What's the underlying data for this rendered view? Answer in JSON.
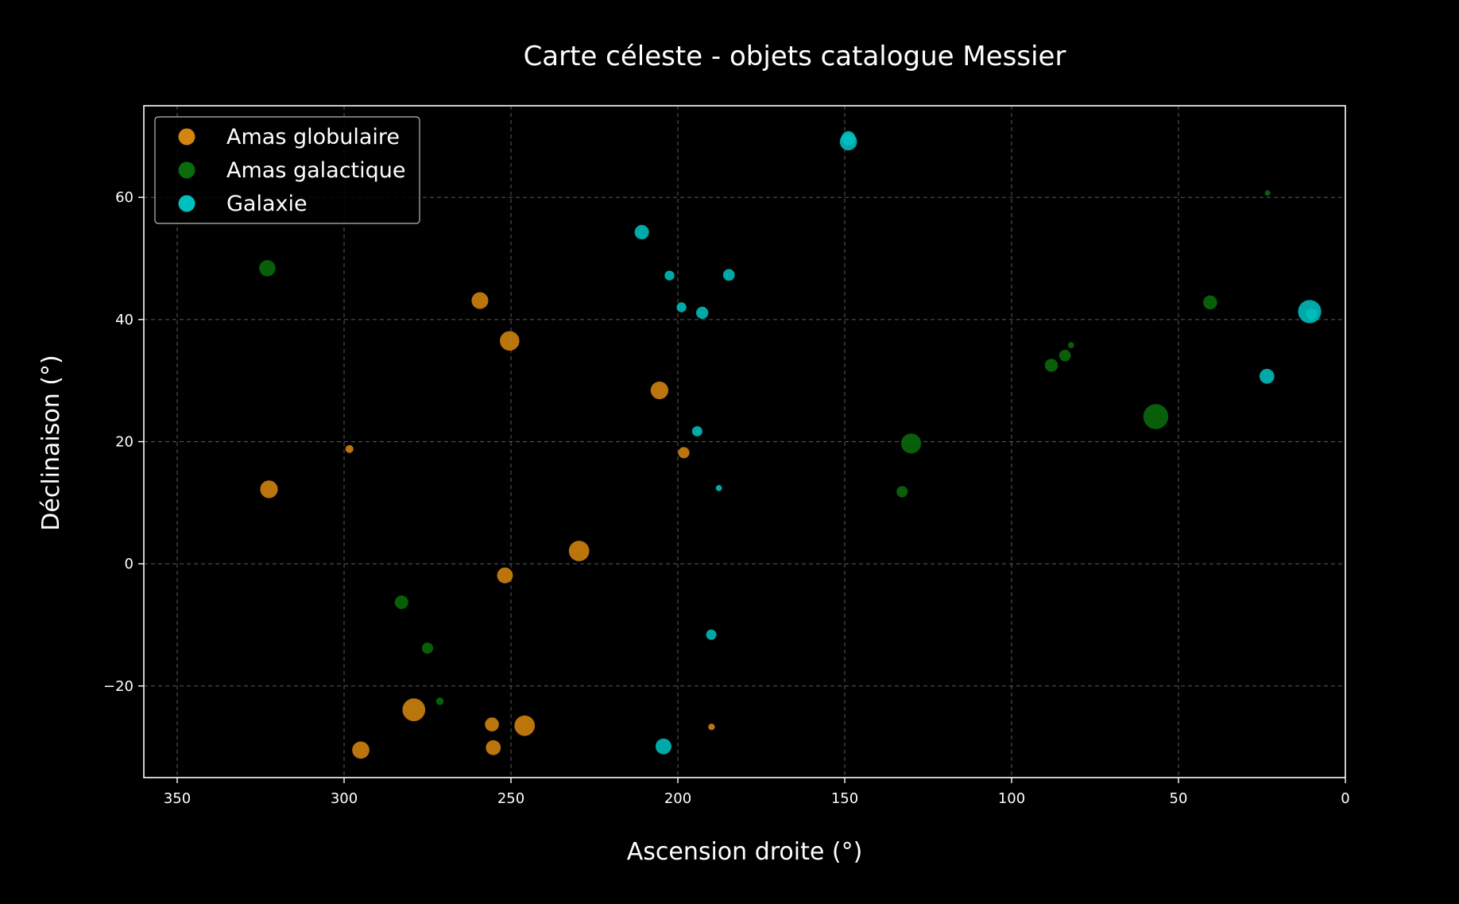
{
  "chart_data": {
    "type": "scatter",
    "title": "Carte céleste - objets catalogue Messier",
    "xlabel": "Ascension droite (°)",
    "ylabel": "Déclinaison (°)",
    "xlim": [
      360,
      0
    ],
    "ylim": [
      -35,
      75
    ],
    "x_ticks": [
      350,
      300,
      250,
      200,
      150,
      100,
      50,
      0
    ],
    "y_ticks": [
      60,
      40,
      20,
      0,
      -20
    ],
    "x_tick_labels": [
      "350",
      "300",
      "250",
      "200",
      "150",
      "100",
      "50",
      "0"
    ],
    "y_tick_labels": [
      "60",
      "40",
      "20",
      "0",
      "−20"
    ],
    "grid": true,
    "legend_position": "top-left",
    "background": "#000000",
    "series": [
      {
        "name": "Amas globulaire",
        "color": "#d4850f",
        "points": [
          {
            "x": 322.5,
            "y": 12.2,
            "mag": 6.2
          },
          {
            "x": 298.4,
            "y": 18.8,
            "mag": 8.3
          },
          {
            "x": 259.3,
            "y": 43.1,
            "mag": 6.4
          },
          {
            "x": 250.4,
            "y": 36.5,
            "mag": 5.8
          },
          {
            "x": 205.5,
            "y": 28.4,
            "mag": 6.2
          },
          {
            "x": 198.2,
            "y": 18.2,
            "mag": 7.6
          },
          {
            "x": 229.6,
            "y": 2.1,
            "mag": 5.6
          },
          {
            "x": 251.8,
            "y": -1.9,
            "mag": 6.6
          },
          {
            "x": 279.1,
            "y": -23.9,
            "mag": 5.1
          },
          {
            "x": 295.0,
            "y": -30.5,
            "mag": 6.3
          },
          {
            "x": 255.7,
            "y": -26.3,
            "mag": 7.0
          },
          {
            "x": 255.3,
            "y": -30.1,
            "mag": 6.8
          },
          {
            "x": 245.9,
            "y": -26.5,
            "mag": 5.6
          },
          {
            "x": 189.9,
            "y": -26.7,
            "mag": 8.6
          }
        ]
      },
      {
        "name": "Amas galactique",
        "color": "#0a6b0a",
        "points": [
          {
            "x": 323.0,
            "y": 48.4,
            "mag": 6.5
          },
          {
            "x": 282.8,
            "y": -6.3,
            "mag": 7.1
          },
          {
            "x": 275.0,
            "y": -13.8,
            "mag": 7.6
          },
          {
            "x": 271.3,
            "y": -22.5,
            "mag": 8.4
          },
          {
            "x": 130.1,
            "y": 19.7,
            "mag": 5.7
          },
          {
            "x": 132.8,
            "y": 11.8,
            "mag": 7.6
          },
          {
            "x": 56.8,
            "y": 24.1,
            "mag": 4.6
          },
          {
            "x": 88.1,
            "y": 32.5,
            "mag": 7.2
          },
          {
            "x": 84.0,
            "y": 34.1,
            "mag": 7.5
          },
          {
            "x": 82.2,
            "y": 35.8,
            "mag": 8.7
          },
          {
            "x": 40.5,
            "y": 42.8,
            "mag": 7.0
          },
          {
            "x": 23.3,
            "y": 60.7,
            "mag": 8.8
          }
        ]
      },
      {
        "name": "Galaxie",
        "color": "#00bfbf",
        "points": [
          {
            "x": 10.7,
            "y": 41.3,
            "mag": 5.0
          },
          {
            "x": 10.2,
            "y": 40.9,
            "mag": 7.7
          },
          {
            "x": 23.5,
            "y": 30.7,
            "mag": 6.8
          },
          {
            "x": 148.9,
            "y": 69.1,
            "mag": 6.3
          },
          {
            "x": 148.9,
            "y": 69.7,
            "mag": 7.0
          },
          {
            "x": 210.8,
            "y": 54.3,
            "mag": 6.9
          },
          {
            "x": 202.5,
            "y": 47.2,
            "mag": 7.9
          },
          {
            "x": 184.7,
            "y": 47.3,
            "mag": 7.5
          },
          {
            "x": 198.9,
            "y": 42.0,
            "mag": 7.9
          },
          {
            "x": 192.7,
            "y": 41.1,
            "mag": 7.4
          },
          {
            "x": 194.2,
            "y": 21.7,
            "mag": 7.8
          },
          {
            "x": 187.7,
            "y": 12.4,
            "mag": 8.7
          },
          {
            "x": 190.0,
            "y": -11.6,
            "mag": 7.8
          },
          {
            "x": 204.3,
            "y": -29.9,
            "mag": 6.6
          }
        ]
      }
    ]
  }
}
